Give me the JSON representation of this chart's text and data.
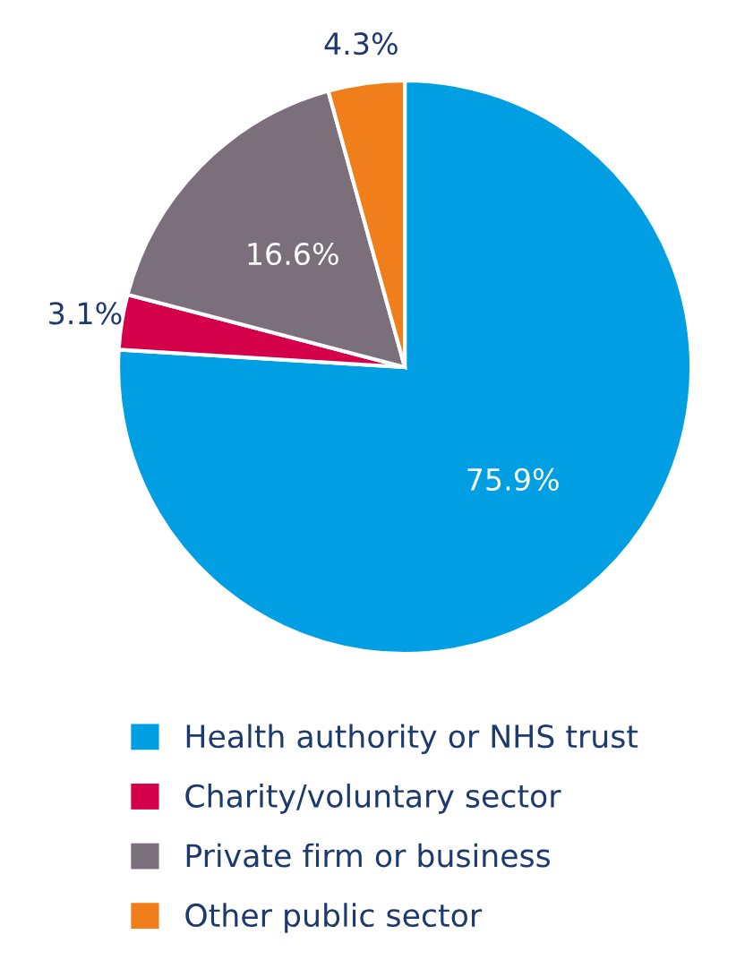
{
  "chart_data": {
    "type": "pie",
    "categories": [
      "Health authority or NHS trust",
      "Charity/voluntary sector",
      "Private firm or business",
      "Other public sector"
    ],
    "values": [
      75.9,
      3.1,
      16.6,
      4.3
    ],
    "colors": [
      "#009fe3",
      "#d5004a",
      "#7b6f7b",
      "#f07f1b"
    ],
    "value_labels": [
      "75.9%",
      "3.1%",
      "16.6%",
      "4.3%"
    ],
    "legend": "bottom"
  }
}
